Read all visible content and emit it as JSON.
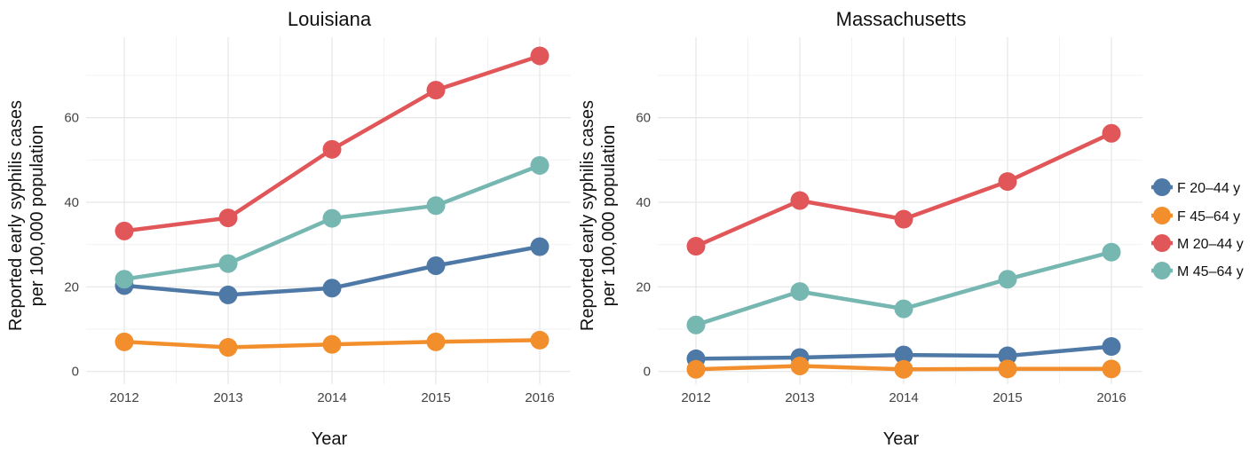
{
  "chart_data": [
    {
      "type": "line",
      "title": "Louisiana",
      "xlabel": "Year",
      "ylabel_lines": [
        "Reported early syphilis cases",
        "per 100,000 population"
      ],
      "x": [
        2012,
        2013,
        2014,
        2015,
        2016
      ],
      "xticks": [
        "2012",
        "2013",
        "2014",
        "2015",
        "2016"
      ],
      "yticks": [
        0,
        20,
        40,
        60
      ],
      "ylim": [
        -3,
        79
      ],
      "grid": true,
      "series": [
        {
          "name": "F 20–44 y",
          "color": "#4e79a7",
          "values": [
            20.3,
            18.1,
            19.7,
            25.0,
            29.5
          ]
        },
        {
          "name": "F 45–64 y",
          "color": "#f28e2b",
          "values": [
            7.0,
            5.7,
            6.4,
            7.0,
            7.4
          ]
        },
        {
          "name": "M 20–44 y",
          "color": "#e15759",
          "values": [
            33.2,
            36.3,
            52.5,
            66.5,
            74.6
          ]
        },
        {
          "name": "M 45–64 y",
          "color": "#76b7b2",
          "values": [
            21.8,
            25.5,
            36.2,
            39.2,
            48.7
          ]
        }
      ]
    },
    {
      "type": "line",
      "title": "Massachusetts",
      "xlabel": "Year",
      "ylabel_lines": [
        "Reported early syphilis cases",
        "per 100,000 population"
      ],
      "x": [
        2012,
        2013,
        2014,
        2015,
        2016
      ],
      "xticks": [
        "2012",
        "2013",
        "2014",
        "2015",
        "2016"
      ],
      "yticks": [
        0,
        20,
        40,
        60
      ],
      "ylim": [
        -3,
        79
      ],
      "grid": true,
      "series": [
        {
          "name": "F 20–44 y",
          "color": "#4e79a7",
          "values": [
            3.0,
            3.3,
            3.9,
            3.7,
            5.9
          ]
        },
        {
          "name": "F 45–64 y",
          "color": "#f28e2b",
          "values": [
            0.5,
            1.3,
            0.5,
            0.6,
            0.6
          ]
        },
        {
          "name": "M 20–44 y",
          "color": "#e15759",
          "values": [
            29.6,
            40.4,
            36.0,
            44.9,
            56.3
          ]
        },
        {
          "name": "M 45–64 y",
          "color": "#76b7b2",
          "values": [
            11.0,
            18.9,
            14.8,
            21.8,
            28.2
          ]
        }
      ]
    }
  ],
  "legend": {
    "placement": "right",
    "items": [
      {
        "label": "F 20–44 y",
        "color": "#4e79a7"
      },
      {
        "label": "F 45–64 y",
        "color": "#f28e2b"
      },
      {
        "label": "M 20–44 y",
        "color": "#e15759"
      },
      {
        "label": "M 45–64 y",
        "color": "#76b7b2"
      }
    ]
  }
}
